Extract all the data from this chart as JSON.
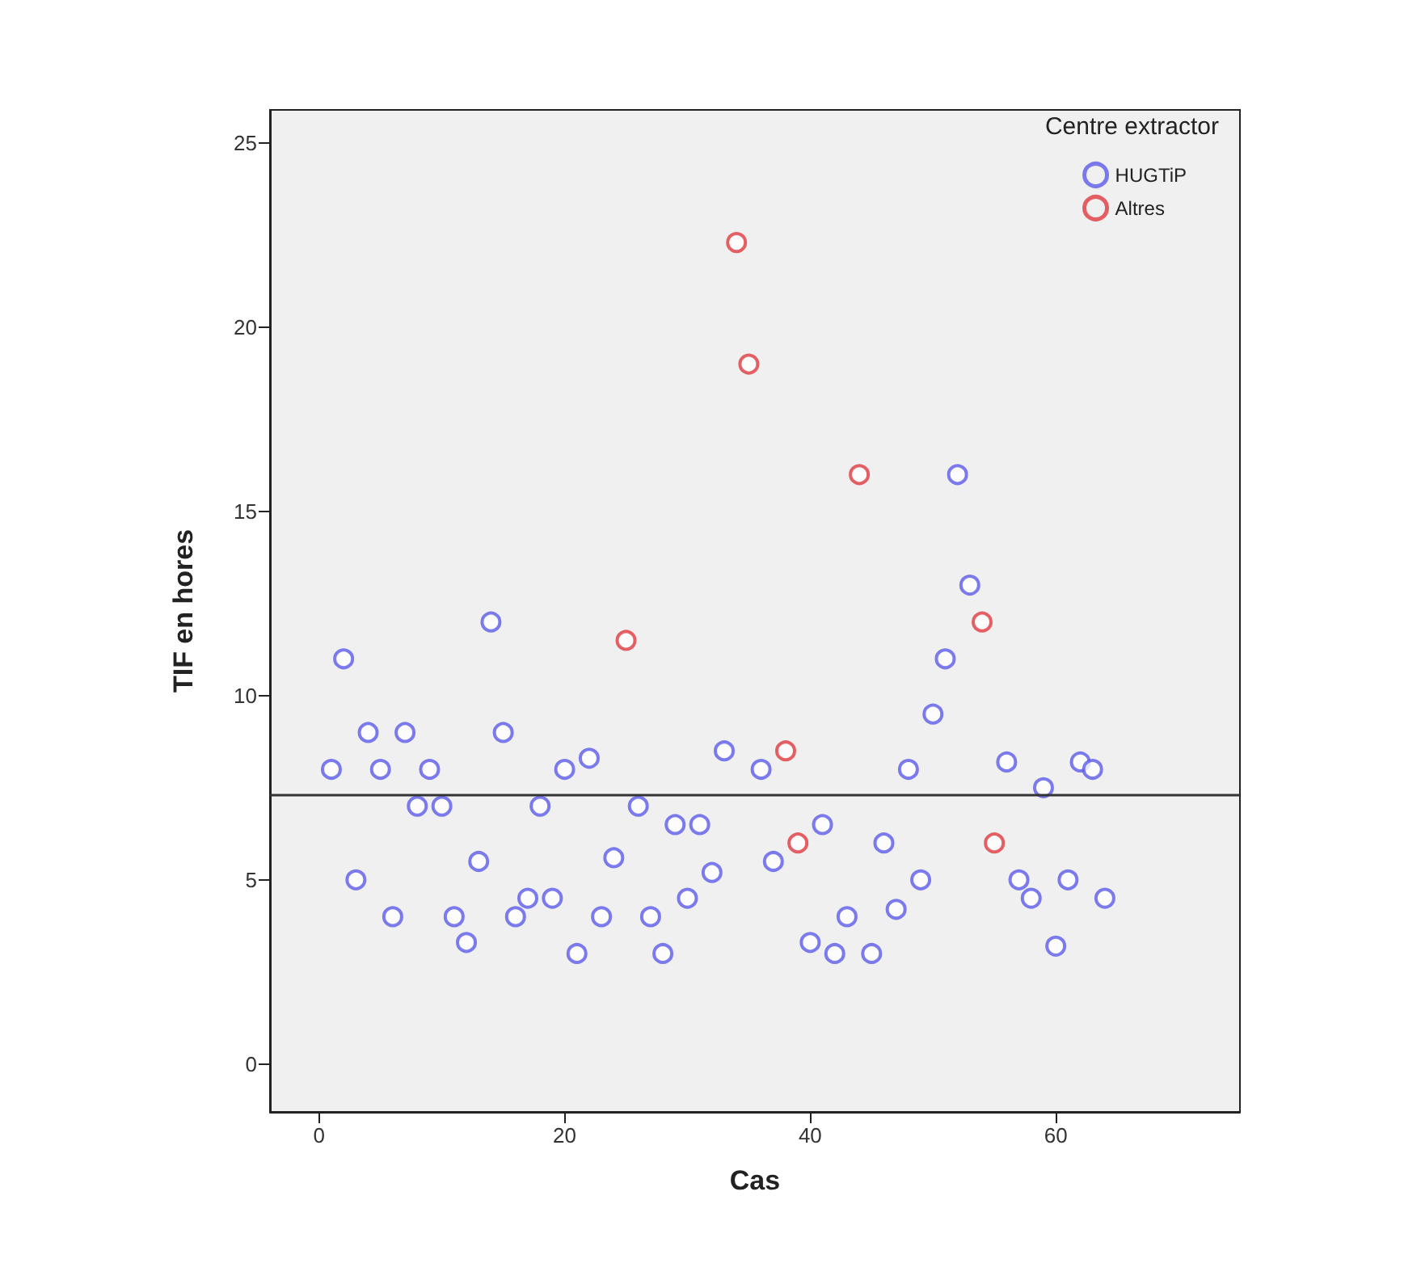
{
  "chart_data": {
    "type": "scatter",
    "xlabel": "Cas",
    "ylabel": "TIF en hores",
    "legend_title": "Centre extractor",
    "series": [
      {
        "name": "HUGTiP",
        "color": "#5b5bea",
        "x": [
          1,
          2,
          3,
          4,
          5,
          6,
          7,
          8,
          9,
          10,
          11,
          12,
          13,
          14,
          15,
          16,
          17,
          18,
          19,
          20,
          21,
          22,
          23,
          24,
          26,
          27,
          28,
          29,
          30,
          31,
          32,
          33,
          36,
          37,
          40,
          41,
          42,
          43,
          45,
          46,
          47,
          48,
          49,
          50,
          51,
          52,
          53,
          56,
          57,
          58,
          59,
          60,
          61,
          62,
          63,
          64
        ],
        "values": [
          8,
          11,
          5,
          9,
          8,
          4,
          9,
          7,
          8,
          7,
          4,
          3.3,
          5.5,
          12,
          9,
          4,
          4.5,
          7,
          4.5,
          8,
          3,
          8.3,
          4,
          5.6,
          7,
          4,
          3,
          6.5,
          4.5,
          6.5,
          5.2,
          8.5,
          8,
          5.5,
          3.3,
          6.5,
          3,
          4,
          3,
          6,
          4.2,
          8,
          5,
          9.5,
          11,
          16,
          13,
          8.2,
          5,
          4.5,
          7.5,
          3.2,
          5,
          8.2,
          8,
          4.5
        ]
      },
      {
        "name": "Altres",
        "color": "#e0393e",
        "x": [
          25,
          34,
          35,
          38,
          39,
          44,
          54,
          55
        ],
        "values": [
          11.5,
          22.3,
          19,
          8.5,
          6,
          16,
          12,
          6
        ]
      }
    ],
    "xlim": [
      -4,
      75
    ],
    "xticks": [
      0,
      20,
      40,
      60
    ],
    "ylim": [
      -1.3,
      25.9
    ],
    "yticks": [
      0,
      5,
      10,
      15,
      20,
      25
    ],
    "ref_lines": [
      {
        "axis": "y",
        "value": 7.3,
        "color": "#333333"
      }
    ],
    "grid": false,
    "legend": "top right",
    "marker": "circle"
  }
}
